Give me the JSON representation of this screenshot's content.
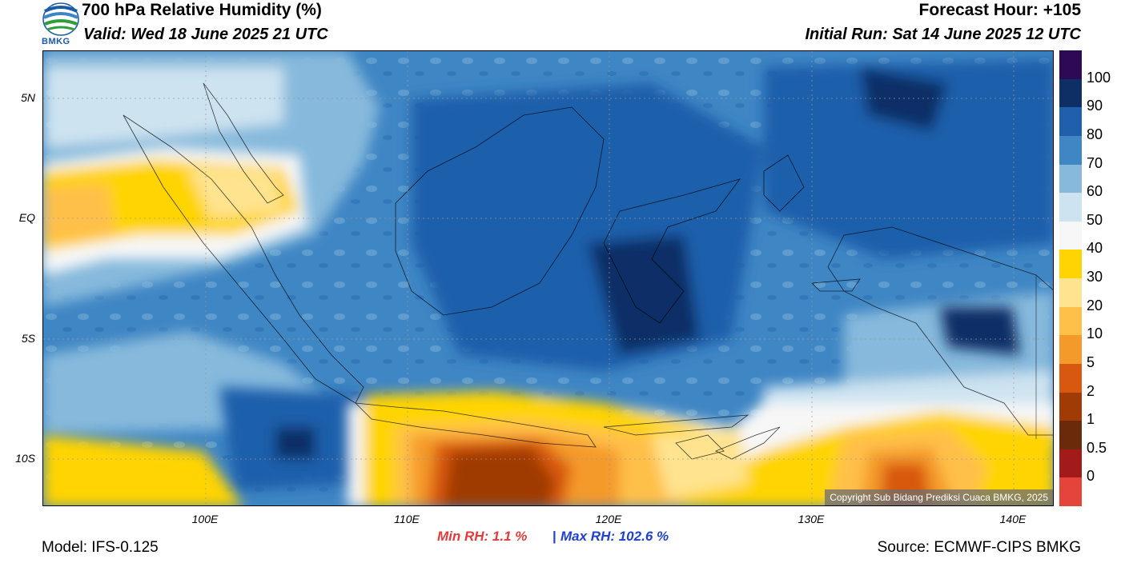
{
  "header": {
    "title": "700 hPa Relative Humidity (%)",
    "valid": "Valid: Wed 18 June 2025 21 UTC",
    "forecast_hour": "Forecast Hour: +105",
    "initial_run": "Initial Run: Sat 14 June 2025 12 UTC",
    "logo_text": "BMKG"
  },
  "map": {
    "lat_labels": [
      "5N",
      "EQ",
      "5S",
      "10S"
    ],
    "lon_labels": [
      "100E",
      "110E",
      "120E",
      "130E",
      "140E"
    ],
    "copyright": "Copyright Sub Bidang Prediksi Cuaca BMKG, 2025"
  },
  "colorbar": {
    "labels": [
      "100",
      "90",
      "80",
      "70",
      "60",
      "50",
      "40",
      "30",
      "20",
      "10",
      "5",
      "2",
      "1",
      "0.5",
      "0"
    ],
    "colors": [
      "#2e0a54",
      "#0d2f66",
      "#1f5fab",
      "#3f86c4",
      "#86b9dc",
      "#cde3f0",
      "#f7f7f7",
      "#ffd400",
      "#ffe38f",
      "#ffc04a",
      "#f49a2a",
      "#d8580f",
      "#a03b06",
      "#6b2a0a",
      "#a21a1a",
      "#e5443a"
    ]
  },
  "footer": {
    "min_rh_label": "Min RH:   1.1 %",
    "separator": "|",
    "max_rh_label": "Max RH: 102.6 %",
    "model": "Model: IFS-0.125",
    "source": "Source: ECMWF-CIPS BMKG"
  }
}
